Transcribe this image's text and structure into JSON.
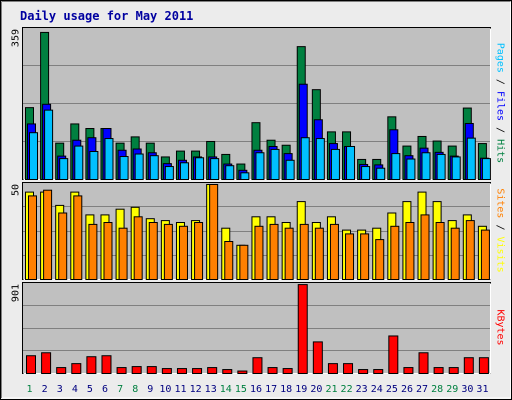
{
  "title": "Daily usage for May 2011",
  "colors": {
    "title": "#0000a0",
    "background": "#ececec",
    "panel": "#c0c0c0",
    "grid": "#808080",
    "hits": "#008040",
    "files": "#0000ff",
    "pages": "#00c0ff",
    "visits": "#ffff00",
    "sites": "#ff8000",
    "kbytes": "#ff0000",
    "weekend": "#008040",
    "weekday": "#000080"
  },
  "right_labels": {
    "pages": "Pages",
    "files": "Files",
    "hits": "Hits",
    "visits": "Visits",
    "sites": "Sites",
    "kbytes": "KBytes",
    "sep": " / "
  },
  "chart_data": [
    {
      "type": "bar",
      "panel": "hits-files-pages",
      "y_max_label": "359",
      "ylim": [
        0,
        359
      ],
      "categories": [
        "1",
        "2",
        "3",
        "4",
        "5",
        "6",
        "7",
        "8",
        "9",
        "10",
        "11",
        "12",
        "13",
        "14",
        "15",
        "16",
        "17",
        "18",
        "19",
        "20",
        "21",
        "22",
        "23",
        "24",
        "25",
        "26",
        "27",
        "28",
        "29",
        "30",
        "31"
      ],
      "weekend_days": [
        "1",
        "7",
        "8",
        "14",
        "15",
        "21",
        "22",
        "28",
        "29"
      ],
      "series": [
        {
          "name": "Hits",
          "values": [
            172,
            352,
            87,
            133,
            122,
            122,
            87,
            102,
            87,
            54,
            68,
            68,
            91,
            60,
            37,
            136,
            94,
            82,
            318,
            215,
            114,
            114,
            48,
            48,
            150,
            80,
            103,
            92,
            80,
            171,
            86
          ]
        },
        {
          "name": "Files",
          "values": [
            133,
            180,
            56,
            94,
            100,
            122,
            70,
            73,
            64,
            38,
            46,
            54,
            54,
            37,
            22,
            70,
            79,
            62,
            228,
            143,
            86,
            79,
            36,
            35,
            119,
            57,
            75,
            65,
            56,
            134,
            51
          ]
        },
        {
          "name": "Pages",
          "values": [
            112,
            166,
            50,
            80,
            67,
            98,
            55,
            61,
            57,
            31,
            40,
            52,
            50,
            33,
            16,
            64,
            72,
            46,
            100,
            98,
            72,
            79,
            31,
            27,
            62,
            49,
            64,
            60,
            54,
            99,
            50
          ]
        }
      ]
    },
    {
      "type": "bar",
      "panel": "visits-sites",
      "y_max_label": "50",
      "ylim": [
        0,
        50
      ],
      "categories": [
        "1",
        "2",
        "3",
        "4",
        "5",
        "6",
        "7",
        "8",
        "9",
        "10",
        "11",
        "12",
        "13",
        "14",
        "15",
        "16",
        "17",
        "18",
        "19",
        "20",
        "21",
        "22",
        "23",
        "24",
        "25",
        "26",
        "27",
        "28",
        "29",
        "30",
        "31"
      ],
      "series": [
        {
          "name": "Visits",
          "values": [
            46,
            46,
            39,
            46,
            34,
            34,
            37,
            38,
            32,
            31,
            30,
            31,
            50,
            27,
            18,
            33,
            33,
            30,
            41,
            30,
            33,
            26,
            26,
            27,
            35,
            41,
            46,
            41,
            31,
            34,
            28
          ]
        },
        {
          "name": "Sites",
          "values": [
            44,
            47,
            35,
            44,
            29,
            30,
            27,
            33,
            30,
            29,
            28,
            30,
            50,
            20,
            18,
            28,
            29,
            27,
            29,
            27,
            29,
            24,
            24,
            21,
            28,
            30,
            34,
            30,
            27,
            31,
            26
          ]
        }
      ]
    },
    {
      "type": "bar",
      "panel": "kbytes",
      "y_max_label": "901",
      "ylim": [
        0,
        901
      ],
      "categories": [
        "1",
        "2",
        "3",
        "4",
        "5",
        "6",
        "7",
        "8",
        "9",
        "10",
        "11",
        "12",
        "13",
        "14",
        "15",
        "16",
        "17",
        "18",
        "19",
        "20",
        "21",
        "22",
        "23",
        "24",
        "25",
        "26",
        "27",
        "28",
        "29",
        "30",
        "31"
      ],
      "series": [
        {
          "name": "KBytes",
          "values": [
            180,
            210,
            60,
            100,
            170,
            180,
            60,
            70,
            70,
            50,
            50,
            50,
            60,
            40,
            25,
            160,
            60,
            50,
            900,
            320,
            100,
            100,
            40,
            40,
            380,
            60,
            210,
            60,
            60,
            160,
            160
          ]
        }
      ]
    }
  ]
}
